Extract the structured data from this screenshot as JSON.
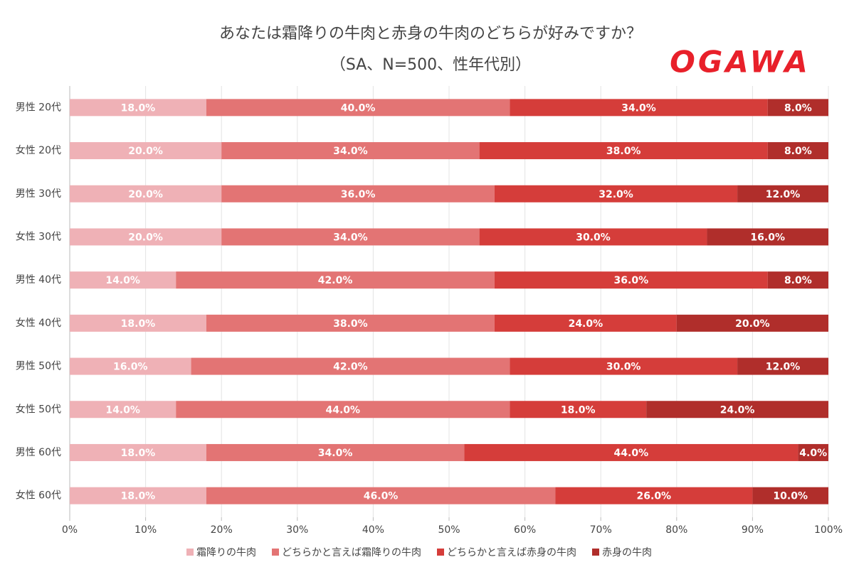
{
  "chart_data": {
    "type": "stacked-bar-horizontal",
    "title": "あなたは霜降りの牛肉と赤身の牛肉のどちらが好みですか？",
    "subtitle": "（SA、N=500、性年代別）",
    "logo": "OGAWA",
    "categories": [
      "男性 20代",
      "女性 20代",
      "男性 30代",
      "女性 30代",
      "男性 40代",
      "女性 40代",
      "男性 50代",
      "女性 50代",
      "男性 60代",
      "女性 60代"
    ],
    "series": [
      {
        "name": "霜降りの牛肉",
        "color": "#efb1b6",
        "values": [
          18,
          20,
          20,
          20,
          14,
          18,
          16,
          14,
          18,
          18
        ],
        "value_labels": [
          "18.0%",
          "20.0%",
          "20.0%",
          "20.0%",
          "14.0%",
          "18.0%",
          "16.0%",
          "14.0%",
          "18.0%",
          "18.0%"
        ]
      },
      {
        "name": "どちらかと言えば霜降りの牛肉",
        "color": "#e37474",
        "values": [
          40,
          34,
          36,
          34,
          42,
          38,
          42,
          44,
          34,
          46
        ],
        "value_labels": [
          "40.0%",
          "34.0%",
          "36.0%",
          "34.0%",
          "42.0%",
          "38.0%",
          "42.0%",
          "44.0%",
          "34.0%",
          "46.0%"
        ]
      },
      {
        "name": "どちらかと言えば赤身の牛肉",
        "color": "#d53d3a",
        "values": [
          34,
          38,
          32,
          30,
          36,
          24,
          30,
          18,
          44,
          26
        ],
        "value_labels": [
          "34.0%",
          "38.0%",
          "32.0%",
          "30.0%",
          "36.0%",
          "24.0%",
          "30.0%",
          "18.0%",
          "44.0%",
          "26.0%"
        ]
      },
      {
        "name": "赤身の牛肉",
        "color": "#b02e2b",
        "values": [
          8,
          8,
          12,
          16,
          8,
          20,
          12,
          24,
          4,
          10
        ],
        "value_labels": [
          "8.0%",
          "8.0%",
          "12.0%",
          "16.0%",
          "8.0%",
          "20.0%",
          "12.0%",
          "24.0%",
          "4.0%",
          "10.0%"
        ]
      }
    ],
    "xlim": [
      0,
      100
    ],
    "xticks": [
      {
        "value": 0,
        "label": "0%"
      },
      {
        "value": 10,
        "label": "10%"
      },
      {
        "value": 20,
        "label": "20%"
      },
      {
        "value": 30,
        "label": "30%"
      },
      {
        "value": 40,
        "label": "40%"
      },
      {
        "value": 50,
        "label": "50%"
      },
      {
        "value": 60,
        "label": "60%"
      },
      {
        "value": 70,
        "label": "70%"
      },
      {
        "value": 80,
        "label": "80%"
      },
      {
        "value": 90,
        "label": "90%"
      },
      {
        "value": 100,
        "label": "100%"
      }
    ],
    "grid": true,
    "legend": "bottom"
  }
}
